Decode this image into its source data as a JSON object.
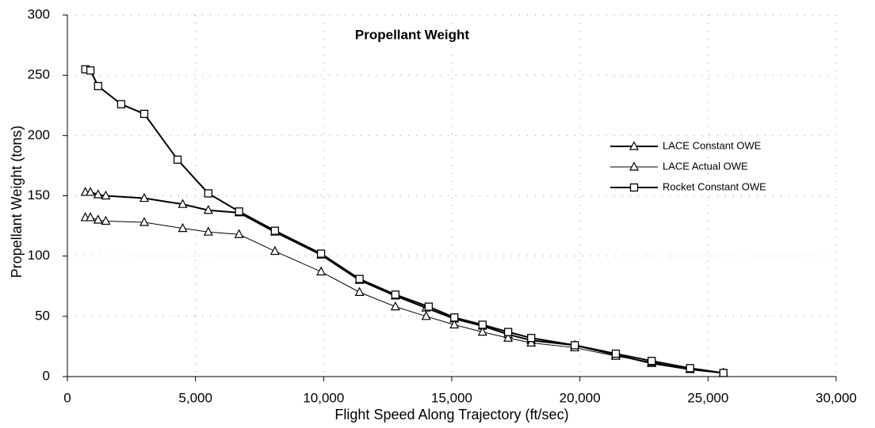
{
  "chart_data": {
    "type": "line",
    "title": "Propellant Weight",
    "x_label": "Flight Speed Along Trajectory  (ft/sec)",
    "y_label": "Propellant Weight (tons)",
    "xlim": [
      0,
      30000
    ],
    "ylim": [
      0,
      300
    ],
    "xticks": [
      0,
      {
        "value": 5000,
        "label": "5,000"
      },
      {
        "value": 10000,
        "label": "10,000"
      },
      {
        "value": 15000,
        "label": "15,000"
      },
      {
        "value": 20000,
        "label": "20,000"
      },
      {
        "value": 25000,
        "label": "25,000"
      },
      {
        "value": 30000,
        "label": "30,000"
      }
    ],
    "yticks": [
      0,
      50,
      100,
      150,
      200,
      250,
      300
    ],
    "grid": true,
    "legend": "right",
    "series": [
      {
        "name": "LACE Constant OWE",
        "color": "#000000",
        "marker": "triangle",
        "line_width": 2,
        "x": [
          700,
          900,
          1200,
          1500,
          3000,
          4500,
          5500,
          6700,
          8100,
          9900,
          11400,
          12800,
          14000,
          15100,
          16200,
          17200,
          18100,
          19800,
          21400,
          22800,
          24300,
          25600
        ],
        "values": [
          153,
          153,
          151,
          150,
          148,
          143,
          138,
          136,
          120,
          101,
          80,
          67,
          57,
          48,
          42,
          35,
          30,
          26,
          18,
          11,
          6,
          3
        ]
      },
      {
        "name": "LACE Actual OWE",
        "color": "#000000",
        "marker": "triangle",
        "line_width": 1,
        "x": [
          700,
          900,
          1200,
          1500,
          3000,
          4500,
          5500,
          6700,
          8100,
          9900,
          11400,
          12800,
          14000,
          15100,
          16200,
          17200,
          18100,
          19800,
          21400,
          22800,
          24300,
          25600
        ],
        "values": [
          132,
          132,
          130,
          129,
          128,
          123,
          120,
          118,
          104,
          87,
          70,
          58,
          50,
          43,
          37,
          32,
          28,
          24,
          17,
          12,
          6,
          3
        ]
      },
      {
        "name": "Rocket Constant OWE",
        "color": "#000000",
        "marker": "square",
        "line_width": 2,
        "x": [
          700,
          900,
          1200,
          2100,
          3000,
          4300,
          5500,
          6700,
          8100,
          9900,
          11400,
          12800,
          14100,
          15100,
          16200,
          17200,
          18100,
          19800,
          21400,
          22800,
          24300,
          25600
        ],
        "values": [
          255,
          254,
          241,
          226,
          218,
          180,
          152,
          137,
          121,
          102,
          81,
          68,
          58,
          49,
          43,
          37,
          32,
          26,
          19,
          13,
          7,
          3
        ]
      }
    ]
  }
}
